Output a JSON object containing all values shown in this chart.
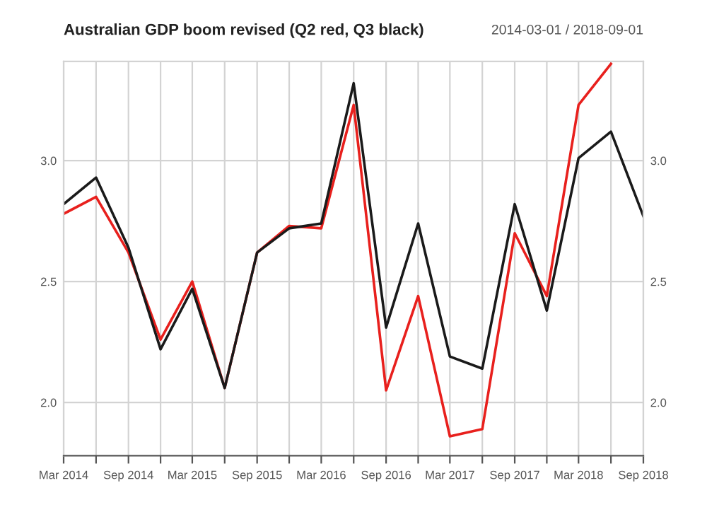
{
  "chart_data": {
    "type": "line",
    "title": "Australian GDP boom revised (Q2 red, Q3 black)",
    "annotations": [
      "2014-03-01 / 2018-09-01"
    ],
    "x": [
      "2014-03-01",
      "2014-06-01",
      "2014-09-01",
      "2014-12-01",
      "2015-03-01",
      "2015-06-01",
      "2015-09-01",
      "2015-12-01",
      "2016-03-01",
      "2016-06-01",
      "2016-09-01",
      "2016-12-01",
      "2017-03-01",
      "2017-06-01",
      "2017-09-01",
      "2017-12-01",
      "2018-03-01",
      "2018-06-01",
      "2018-09-01"
    ],
    "series": [
      {
        "color": "#e8201d",
        "values": [
          2.78,
          2.85,
          2.62,
          2.26,
          2.5,
          2.06,
          2.62,
          2.73,
          2.72,
          3.23,
          2.05,
          2.44,
          1.86,
          1.89,
          2.7,
          2.44,
          3.23,
          3.4,
          null
        ]
      },
      {
        "color": "#1a1a1a",
        "values": [
          2.82,
          2.93,
          2.64,
          2.22,
          2.47,
          2.06,
          2.62,
          2.72,
          2.74,
          3.32,
          2.31,
          2.74,
          2.19,
          2.14,
          2.82,
          2.38,
          3.01,
          3.12,
          2.77
        ]
      }
    ],
    "xlim": [
      "2014-03-01",
      "2018-09-01"
    ],
    "xticks": [
      {
        "value": "2014-03-01",
        "label": "Mar 2014"
      },
      {
        "value": "2014-06-01",
        "label": null
      },
      {
        "value": "2014-09-01",
        "label": "Sep 2014"
      },
      {
        "value": "2014-12-01",
        "label": null
      },
      {
        "value": "2015-03-01",
        "label": "Mar 2015"
      },
      {
        "value": "2015-06-01",
        "label": null
      },
      {
        "value": "2015-09-01",
        "label": "Sep 2015"
      },
      {
        "value": "2015-12-01",
        "label": null
      },
      {
        "value": "2016-03-01",
        "label": "Mar 2016"
      },
      {
        "value": "2016-06-01",
        "label": null
      },
      {
        "value": "2016-09-01",
        "label": "Sep 2016"
      },
      {
        "value": "2016-12-01",
        "label": null
      },
      {
        "value": "2017-03-01",
        "label": "Mar 2017"
      },
      {
        "value": "2017-06-01",
        "label": null
      },
      {
        "value": "2017-09-01",
        "label": "Sep 2017"
      },
      {
        "value": "2017-12-01",
        "label": null
      },
      {
        "value": "2018-03-01",
        "label": "Mar 2018"
      },
      {
        "value": "2018-06-01",
        "label": null
      },
      {
        "value": "2018-09-01",
        "label": "Sep 2018"
      }
    ],
    "ylim": [
      1.78,
      3.41
    ],
    "yticks": [
      {
        "value": 2.0,
        "label": "2.0"
      },
      {
        "value": 2.5,
        "label": "2.5"
      },
      {
        "value": 3.0,
        "label": "3.0"
      }
    ],
    "y2lim": [
      1.78,
      3.41
    ],
    "y2ticks": [
      {
        "value": 2.0,
        "label": "2.0"
      },
      {
        "value": 2.5,
        "label": "2.5"
      },
      {
        "value": 3.0,
        "label": "3.0"
      }
    ],
    "grid": true,
    "marker": "none",
    "line_style": "solid"
  }
}
